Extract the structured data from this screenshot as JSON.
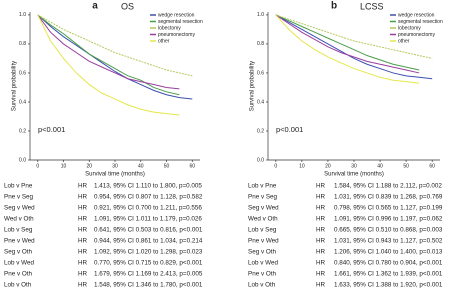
{
  "chart_data": [
    {
      "type": "line",
      "panel_label": "a",
      "title": "OS",
      "x_label": "Survival time (months)",
      "y_label": "Survival probability",
      "annotation": "p<0.001",
      "x": [
        0,
        5,
        10,
        15,
        20,
        25,
        30,
        35,
        40,
        45,
        50,
        55,
        60
      ],
      "xlim": [
        -3,
        63
      ],
      "xticks": [
        0,
        10,
        20,
        30,
        40,
        50,
        60
      ],
      "ylim": [
        0,
        1.02
      ],
      "yticks": [
        {
          "value": 0,
          "label": "0.0"
        },
        {
          "value": 0.2,
          "label": "0.2"
        },
        {
          "value": 0.4,
          "label": "0.4"
        },
        {
          "value": 0.6,
          "label": "0.6"
        },
        {
          "value": 0.8,
          "label": "0.8"
        },
        {
          "value": 1,
          "label": "1.0"
        }
      ],
      "series": [
        {
          "name": "wedge resection",
          "color": "#3b4fb0",
          "values": [
            1,
            0.92,
            0.85,
            0.79,
            0.73,
            0.67,
            0.61,
            0.56,
            0.52,
            0.48,
            0.45,
            0.43,
            0.42
          ]
        },
        {
          "name": "segmental resection",
          "color": "#4a9e4a",
          "values": [
            1,
            0.93,
            0.87,
            0.8,
            0.73,
            0.68,
            0.63,
            0.58,
            0.55,
            0.5,
            0.47,
            0.45,
            null
          ]
        },
        {
          "name": "lobectomy",
          "color": "#b5c95a",
          "values": [
            1,
            0.95,
            0.9,
            0.86,
            0.82,
            0.78,
            0.74,
            0.71,
            0.68,
            0.65,
            0.62,
            0.6,
            0.58
          ]
        },
        {
          "name": "pneumonectomy",
          "color": "#9a3fa0",
          "values": [
            1,
            0.88,
            0.8,
            0.74,
            0.68,
            0.64,
            0.6,
            0.56,
            0.54,
            0.52,
            0.5,
            0.49,
            null
          ]
        },
        {
          "name": "other",
          "color": "#e6e64a",
          "values": [
            1,
            0.82,
            0.7,
            0.6,
            0.52,
            0.46,
            0.42,
            0.38,
            0.35,
            0.33,
            0.32,
            0.31,
            null
          ]
        }
      ],
      "hr_table": [
        [
          "Lob v Pne",
          "HR",
          "1.413, 95% CI 1.110 to 1.800, p=0.005"
        ],
        [
          "Pne v Seg",
          "HR",
          "0.954, 95% CI 0.807 to 1.128, p=0.582"
        ],
        [
          "Seg v Wed",
          "HR",
          "0.921, 95% CI 0.700 to 1.211, p=0.556"
        ],
        [
          "Wed v Oth",
          "HR",
          "1.091, 95% CI 1.011 to 1.179, p=0.026"
        ],
        [
          "Lob v Seg",
          "HR",
          "0.641, 95% CI 0.503 to 0.816, p<0.001"
        ],
        [
          "Pne v Wed",
          "HR",
          "0.944, 95% CI 0.861 to 1.034, p=0.214"
        ],
        [
          "Seg v Oth",
          "HR",
          "1.092, 95% CI 1.020 to 1.298, p=0.023"
        ],
        [
          "Lob v Wed",
          "HR",
          "0.770, 95% CI 0.715 to 0.829, p<0.001"
        ],
        [
          "Pne v Oth",
          "HR",
          "1.679, 95% CI 1.169 to 2.413, p=0.005"
        ],
        [
          "Lob v Oth",
          "HR",
          "1.548, 95% CI 1.346 to 1.780, p<0.001"
        ]
      ]
    },
    {
      "type": "line",
      "panel_label": "b",
      "title": "LCSS",
      "x_label": "Survival time (months)",
      "y_label": "Survival probability",
      "annotation": "p<0.001",
      "x": [
        0,
        5,
        10,
        15,
        20,
        25,
        30,
        35,
        40,
        45,
        50,
        55,
        60
      ],
      "xlim": [
        -3,
        63
      ],
      "xticks": [
        0,
        10,
        20,
        30,
        40,
        50,
        60
      ],
      "ylim": [
        0,
        1.02
      ],
      "yticks": [
        {
          "value": 0,
          "label": "0.0"
        },
        {
          "value": 0.2,
          "label": "0.2"
        },
        {
          "value": 0.4,
          "label": "0.4"
        },
        {
          "value": 0.6,
          "label": "0.6"
        },
        {
          "value": 0.8,
          "label": "0.8"
        },
        {
          "value": 1,
          "label": "1.0"
        }
      ],
      "series": [
        {
          "name": "wedge resection",
          "color": "#3b4fb0",
          "values": [
            1,
            0.95,
            0.9,
            0.85,
            0.8,
            0.75,
            0.7,
            0.66,
            0.63,
            0.6,
            0.58,
            0.57,
            0.56
          ]
        },
        {
          "name": "segmental resection",
          "color": "#4a9e4a",
          "values": [
            1,
            0.96,
            0.92,
            0.88,
            0.84,
            0.8,
            0.76,
            0.72,
            0.69,
            0.66,
            0.64,
            0.62,
            null
          ]
        },
        {
          "name": "lobectomy",
          "color": "#b5c95a",
          "values": [
            1,
            0.97,
            0.94,
            0.91,
            0.88,
            0.85,
            0.82,
            0.8,
            0.78,
            0.76,
            0.74,
            0.72,
            0.7
          ]
        },
        {
          "name": "pneumonectomy",
          "color": "#9a3fa0",
          "values": [
            1,
            0.94,
            0.88,
            0.83,
            0.78,
            0.74,
            0.71,
            0.68,
            0.66,
            0.64,
            0.62,
            0.6,
            null
          ]
        },
        {
          "name": "other",
          "color": "#e6e64a",
          "values": [
            1,
            0.9,
            0.82,
            0.76,
            0.71,
            0.67,
            0.63,
            0.6,
            0.57,
            0.55,
            0.54,
            0.53,
            null
          ]
        }
      ],
      "hr_table": [
        [
          "Lob v Pne",
          "HR",
          "1.584, 95% CI 1.188 to 2.112, p=0.002"
        ],
        [
          "Pne v Seg",
          "HR",
          "1.031, 95% CI 0.839 to 1.268, p=0.769"
        ],
        [
          "Seg v Wed",
          "HR",
          "0.798, 95% CI 0.565 to 1.127, p=0.199"
        ],
        [
          "Wed v Oth",
          "HR",
          "1.091, 95% CI 0.996 to 1.197, p=0.062"
        ],
        [
          "Lob v Seg",
          "HR",
          "0.665, 95% CI 0.510 to 0.868, p=0.003"
        ],
        [
          "Pne v Wed",
          "HR",
          "1.031, 95% CI 0.943 to 1.127, p=0.502"
        ],
        [
          "Seg v Oth",
          "HR",
          "1.206, 95% CI 1.040 to 1.400, p=0.013"
        ],
        [
          "Lob v Wed",
          "HR",
          "0.840, 95% CI 0.780 to 0.904, p<0.001"
        ],
        [
          "Pne v Oth",
          "HR",
          "1.661, 95% CI 1.362 to 1.939, p<0.001"
        ],
        [
          "Lob v Oth",
          "HR",
          "1.633, 95% CI 1.388 to 1.920, p<0.001"
        ]
      ]
    }
  ]
}
